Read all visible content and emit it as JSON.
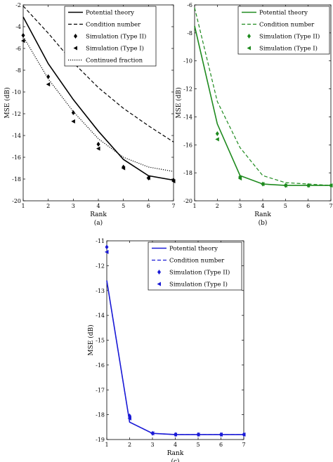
{
  "chart_data": [
    {
      "type": "line",
      "caption": "(a)",
      "xlabel": "Rank",
      "ylabel": "MSE (dB)",
      "xlim": [
        1,
        7
      ],
      "ylim": [
        -20,
        -2
      ],
      "xticks": [
        1,
        2,
        3,
        4,
        5,
        6,
        7
      ],
      "yticks": [
        -20,
        -18,
        -16,
        -14,
        -12,
        -10,
        -8,
        -6,
        -4,
        -2
      ],
      "grid": false,
      "legend_position": "top-right",
      "color": "#000000",
      "series": [
        {
          "name": "Potential theory",
          "style": "solid",
          "x": [
            1,
            2,
            3,
            4,
            5,
            6,
            7
          ],
          "y": [
            -3.1,
            -7.4,
            -10.7,
            -13.6,
            -16.2,
            -17.7,
            -18.1
          ]
        },
        {
          "name": "Condition number",
          "style": "dashed",
          "x": [
            1,
            2,
            3,
            4,
            5,
            6,
            7
          ],
          "y": [
            -2.1,
            -4.6,
            -7.3,
            -9.6,
            -11.5,
            -13.1,
            -14.6
          ]
        },
        {
          "name": "Simulation (Type II)",
          "style": "diamond",
          "x": [
            1,
            2,
            3,
            4,
            5,
            6,
            7
          ],
          "y": [
            -4.8,
            -8.6,
            -11.9,
            -14.8,
            -16.9,
            -17.9,
            -18.1
          ]
        },
        {
          "name": "Simulation (Type I)",
          "style": "triangle",
          "x": [
            1,
            2,
            3,
            4,
            5,
            6,
            7
          ],
          "y": [
            -5.3,
            -9.3,
            -12.7,
            -15.2,
            -17.0,
            -17.9,
            -18.2
          ]
        },
        {
          "name": "Continued fraction",
          "style": "dotted",
          "x": [
            1,
            2,
            3,
            4,
            5,
            6,
            7
          ],
          "y": [
            -4.9,
            -8.8,
            -11.8,
            -14.3,
            -16.0,
            -16.9,
            -17.3
          ]
        }
      ]
    },
    {
      "type": "line",
      "caption": "(b)",
      "xlabel": "Rank",
      "ylabel": "MSE (dB)",
      "xlim": [
        1,
        7
      ],
      "ylim": [
        -20,
        -6
      ],
      "xticks": [
        1,
        2,
        3,
        4,
        5,
        6,
        7
      ],
      "yticks": [
        -20,
        -18,
        -16,
        -14,
        -12,
        -10,
        -8,
        -6
      ],
      "grid": false,
      "legend_position": "top-right",
      "color": "#1e8a1e",
      "series": [
        {
          "name": "Potential theory",
          "style": "solid",
          "x": [
            1,
            2,
            3,
            4,
            5,
            6,
            7
          ],
          "y": [
            -7.5,
            -14.5,
            -18.2,
            -18.8,
            -18.9,
            -18.9,
            -18.9
          ]
        },
        {
          "name": "Condition number",
          "style": "dashed",
          "x": [
            1,
            2,
            3,
            4,
            5,
            6,
            7
          ],
          "y": [
            -6.2,
            -12.9,
            -16.2,
            -18.2,
            -18.7,
            -18.8,
            -18.9
          ]
        },
        {
          "name": "Simulation (Type II)",
          "style": "diamond",
          "x": [
            2,
            3,
            4,
            5,
            6,
            7
          ],
          "y": [
            -15.2,
            -18.3,
            -18.8,
            -18.9,
            -18.9,
            -18.9
          ]
        },
        {
          "name": "Simulation (Type I)",
          "style": "triangle",
          "x": [
            2,
            3,
            4,
            5,
            6,
            7
          ],
          "y": [
            -15.6,
            -18.4,
            -18.8,
            -18.9,
            -18.9,
            -18.9
          ]
        }
      ]
    },
    {
      "type": "line",
      "caption": "(c)",
      "xlabel": "Rank",
      "ylabel": "MSE (dB)",
      "xlim": [
        1,
        7
      ],
      "ylim": [
        -19,
        -11
      ],
      "xticks": [
        1,
        2,
        3,
        4,
        5,
        6,
        7
      ],
      "yticks": [
        -19,
        -18,
        -17,
        -16,
        -15,
        -14,
        -13,
        -12,
        -11
      ],
      "grid": false,
      "legend_position": "top-right",
      "color": "#1a1ad6",
      "series": [
        {
          "name": "Potential theory",
          "style": "solid",
          "x": [
            1,
            2,
            3,
            4,
            5,
            6,
            7
          ],
          "y": [
            -12.6,
            -18.3,
            -18.75,
            -18.8,
            -18.8,
            -18.8,
            -18.8
          ]
        },
        {
          "name": "Condition number",
          "style": "dashed",
          "x": [
            1,
            2,
            3,
            4,
            5,
            6,
            7
          ],
          "y": [
            -12.6,
            -18.3,
            -18.75,
            -18.8,
            -18.8,
            -18.8,
            -18.8
          ]
        },
        {
          "name": "Simulation (Type II)",
          "style": "diamond",
          "x": [
            1,
            2,
            3,
            4,
            5,
            6,
            7
          ],
          "y": [
            -11.25,
            -18.05,
            -18.75,
            -18.8,
            -18.8,
            -18.8,
            -18.8
          ]
        },
        {
          "name": "Simulation (Type I)",
          "style": "triangle",
          "x": [
            1,
            2,
            3,
            4,
            5,
            6,
            7
          ],
          "y": [
            -11.45,
            -18.15,
            -18.75,
            -18.8,
            -18.8,
            -18.8,
            -18.8
          ]
        }
      ]
    }
  ]
}
